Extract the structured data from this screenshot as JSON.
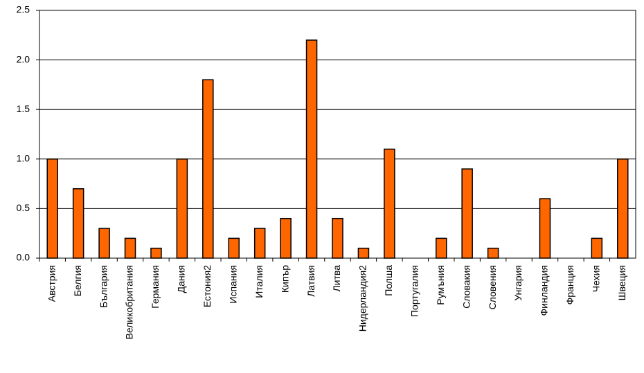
{
  "chart_data": {
    "type": "bar",
    "categories": [
      "Австрия",
      "Белгия",
      "България",
      "Великобритания",
      "Германия",
      "Дания",
      "Естония2",
      "Испания",
      "Италия",
      "Кипър",
      "Латвия",
      "Литва",
      "Нидерландия2",
      "Полша",
      "Португалия",
      "Румъния",
      "Словакия",
      "Словения",
      "Унгария",
      "Финландия",
      "Франция",
      "Чехия",
      "Швеция"
    ],
    "values": [
      1.0,
      0.7,
      0.3,
      0.2,
      0.1,
      1.0,
      1.8,
      0.2,
      0.3,
      0.4,
      2.2,
      0.4,
      0.1,
      1.1,
      0,
      0.2,
      0.9,
      0.1,
      0,
      0.6,
      0,
      0.2,
      1.0
    ],
    "color": "#ff6600",
    "ylim": [
      0,
      2.5
    ],
    "yticks": [
      {
        "value": 0,
        "label": "0.0"
      },
      {
        "value": 0.5,
        "label": "0.5"
      },
      {
        "value": 1,
        "label": "1.0"
      },
      {
        "value": 1.5,
        "label": "1.5"
      },
      {
        "value": 2,
        "label": "2.0"
      },
      {
        "value": 2.5,
        "label": "2.5"
      }
    ],
    "grid": true
  }
}
